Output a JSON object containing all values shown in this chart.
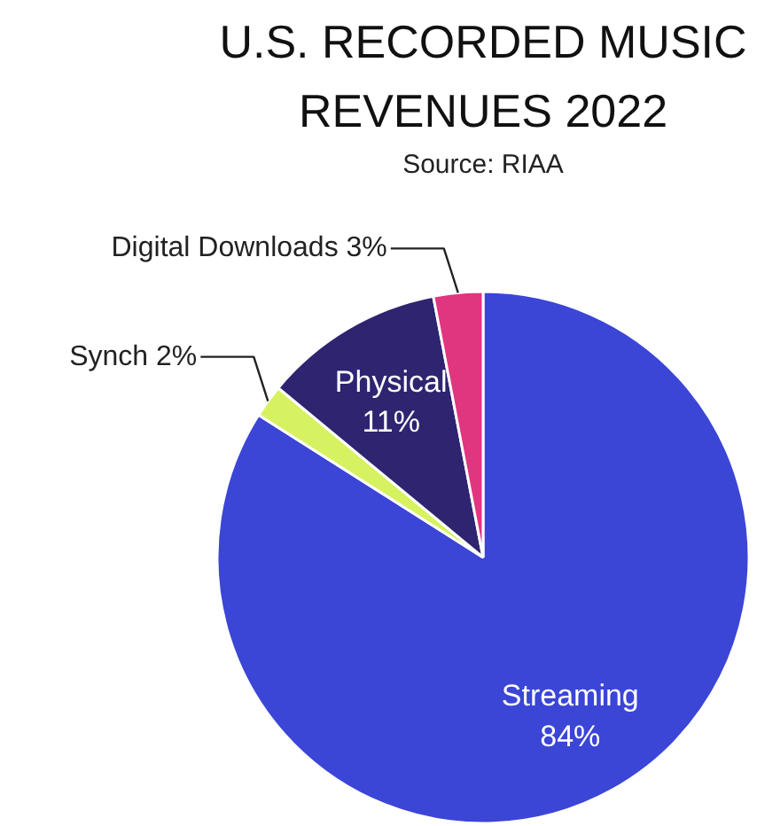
{
  "chart_data": {
    "type": "pie",
    "title": "U.S. RECORDED MUSIC\nREVENUES 2022",
    "annotations": [
      "Source: RIAA"
    ],
    "categories": [
      "Streaming",
      "Synch",
      "Physical",
      "Digital Downloads"
    ],
    "values": [
      84,
      2,
      11,
      3
    ],
    "colors": [
      "#3b45d6",
      "#d6f261",
      "#2e2470",
      "#e0357f"
    ],
    "value_labels": [
      "84%",
      "2%",
      "11%",
      "3%"
    ]
  }
}
